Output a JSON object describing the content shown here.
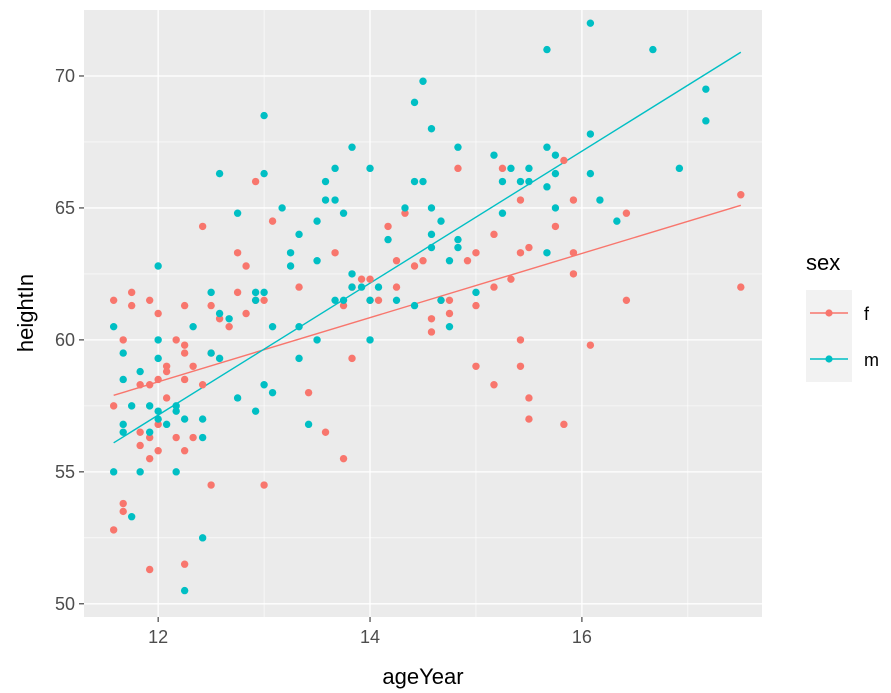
{
  "chart_data": {
    "type": "scatter",
    "title": "",
    "xlabel": "ageYear",
    "ylabel": "heightIn",
    "xlim": [
      11.3,
      17.7
    ],
    "ylim": [
      49.5,
      72.5
    ],
    "x_ticks": [
      12,
      14,
      16
    ],
    "y_ticks": [
      50,
      55,
      60,
      65,
      70
    ],
    "x_tick_labels": [
      "12",
      "14",
      "16"
    ],
    "y_tick_labels": [
      "50",
      "55",
      "60",
      "65",
      "70"
    ],
    "grid": true,
    "legend": {
      "title": "sex",
      "position": "right"
    },
    "series": [
      {
        "name": "f",
        "color": "#F8766D",
        "trend": {
          "x": [
            11.58,
            17.5
          ],
          "y": [
            57.9,
            65.1
          ]
        },
        "points": [
          [
            11.58,
            61.5
          ],
          [
            11.58,
            57.5
          ],
          [
            11.58,
            52.8
          ],
          [
            11.67,
            60.0
          ],
          [
            11.67,
            53.8
          ],
          [
            11.67,
            53.5
          ],
          [
            11.75,
            61.8
          ],
          [
            11.75,
            61.3
          ],
          [
            11.83,
            58.3
          ],
          [
            11.83,
            56.5
          ],
          [
            11.83,
            56.0
          ],
          [
            11.92,
            61.5
          ],
          [
            11.92,
            58.3
          ],
          [
            11.92,
            56.3
          ],
          [
            11.92,
            55.5
          ],
          [
            11.92,
            51.3
          ],
          [
            12.0,
            61.0
          ],
          [
            12.0,
            58.5
          ],
          [
            12.0,
            56.8
          ],
          [
            12.0,
            55.8
          ],
          [
            12.08,
            59.0
          ],
          [
            12.08,
            58.8
          ],
          [
            12.08,
            57.8
          ],
          [
            12.17,
            60.0
          ],
          [
            12.17,
            56.3
          ],
          [
            12.25,
            61.3
          ],
          [
            12.25,
            59.8
          ],
          [
            12.25,
            59.5
          ],
          [
            12.25,
            58.5
          ],
          [
            12.25,
            55.8
          ],
          [
            12.25,
            51.5
          ],
          [
            12.33,
            59.0
          ],
          [
            12.33,
            56.3
          ],
          [
            12.42,
            64.3
          ],
          [
            12.42,
            58.3
          ],
          [
            12.5,
            61.3
          ],
          [
            12.5,
            59.5
          ],
          [
            12.5,
            54.5
          ],
          [
            12.58,
            60.8
          ],
          [
            12.67,
            60.5
          ],
          [
            12.75,
            63.3
          ],
          [
            12.75,
            61.8
          ],
          [
            12.83,
            62.8
          ],
          [
            12.83,
            61.0
          ],
          [
            12.92,
            66.0
          ],
          [
            12.92,
            61.5
          ],
          [
            13.0,
            61.5
          ],
          [
            13.0,
            54.5
          ],
          [
            13.08,
            64.5
          ],
          [
            13.33,
            62.0
          ],
          [
            13.42,
            58.0
          ],
          [
            13.58,
            56.5
          ],
          [
            13.67,
            63.3
          ],
          [
            13.75,
            61.3
          ],
          [
            13.75,
            55.5
          ],
          [
            13.83,
            62.0
          ],
          [
            13.83,
            59.3
          ],
          [
            13.92,
            62.3
          ],
          [
            14.0,
            62.3
          ],
          [
            14.0,
            61.5
          ],
          [
            14.08,
            61.5
          ],
          [
            14.17,
            64.3
          ],
          [
            14.25,
            63.0
          ],
          [
            14.25,
            62.0
          ],
          [
            14.33,
            64.8
          ],
          [
            14.42,
            62.8
          ],
          [
            14.5,
            63.0
          ],
          [
            14.58,
            60.8
          ],
          [
            14.58,
            60.3
          ],
          [
            14.67,
            61.5
          ],
          [
            14.75,
            61.5
          ],
          [
            14.75,
            61.0
          ],
          [
            14.83,
            66.5
          ],
          [
            14.92,
            63.0
          ],
          [
            15.0,
            63.3
          ],
          [
            15.0,
            61.3
          ],
          [
            15.0,
            59.0
          ],
          [
            15.17,
            64.0
          ],
          [
            15.17,
            62.0
          ],
          [
            15.17,
            58.3
          ],
          [
            15.25,
            66.5
          ],
          [
            15.33,
            62.3
          ],
          [
            15.42,
            65.3
          ],
          [
            15.42,
            63.3
          ],
          [
            15.42,
            60.0
          ],
          [
            15.42,
            59.0
          ],
          [
            15.5,
            63.5
          ],
          [
            15.5,
            57.8
          ],
          [
            15.5,
            57.0
          ],
          [
            15.75,
            64.3
          ],
          [
            15.83,
            66.8
          ],
          [
            15.83,
            56.8
          ],
          [
            15.92,
            65.3
          ],
          [
            15.92,
            63.3
          ],
          [
            15.92,
            62.5
          ],
          [
            16.08,
            59.8
          ],
          [
            16.42,
            64.8
          ],
          [
            16.42,
            61.5
          ],
          [
            17.5,
            65.5
          ],
          [
            17.5,
            62.0
          ]
        ]
      },
      {
        "name": "m",
        "color": "#00BFC4",
        "trend": {
          "x": [
            11.58,
            17.5
          ],
          "y": [
            56.1,
            70.9
          ]
        },
        "points": [
          [
            11.58,
            60.5
          ],
          [
            11.58,
            55.0
          ],
          [
            11.67,
            59.5
          ],
          [
            11.67,
            58.5
          ],
          [
            11.67,
            56.8
          ],
          [
            11.67,
            56.5
          ],
          [
            11.75,
            57.5
          ],
          [
            11.75,
            53.3
          ],
          [
            11.83,
            58.8
          ],
          [
            11.83,
            55.0
          ],
          [
            11.92,
            57.5
          ],
          [
            11.92,
            56.5
          ],
          [
            12.0,
            62.8
          ],
          [
            12.0,
            60.0
          ],
          [
            12.0,
            59.3
          ],
          [
            12.0,
            57.3
          ],
          [
            12.0,
            57.0
          ],
          [
            12.08,
            56.8
          ],
          [
            12.17,
            57.5
          ],
          [
            12.17,
            57.3
          ],
          [
            12.17,
            55.0
          ],
          [
            12.25,
            57.0
          ],
          [
            12.25,
            50.5
          ],
          [
            12.33,
            60.5
          ],
          [
            12.42,
            57.0
          ],
          [
            12.42,
            56.3
          ],
          [
            12.42,
            52.5
          ],
          [
            12.5,
            61.8
          ],
          [
            12.5,
            59.5
          ],
          [
            12.58,
            66.3
          ],
          [
            12.58,
            61.0
          ],
          [
            12.58,
            59.3
          ],
          [
            12.67,
            60.8
          ],
          [
            12.75,
            64.8
          ],
          [
            12.75,
            57.8
          ],
          [
            12.92,
            61.8
          ],
          [
            12.92,
            61.5
          ],
          [
            12.92,
            57.3
          ],
          [
            13.0,
            68.5
          ],
          [
            13.0,
            66.3
          ],
          [
            13.0,
            61.8
          ],
          [
            13.0,
            58.3
          ],
          [
            13.08,
            60.5
          ],
          [
            13.08,
            58.0
          ],
          [
            13.17,
            65.0
          ],
          [
            13.25,
            63.3
          ],
          [
            13.25,
            62.8
          ],
          [
            13.33,
            64.0
          ],
          [
            13.33,
            60.5
          ],
          [
            13.33,
            59.3
          ],
          [
            13.42,
            56.8
          ],
          [
            13.5,
            64.5
          ],
          [
            13.5,
            63.0
          ],
          [
            13.5,
            60.0
          ],
          [
            13.58,
            66.0
          ],
          [
            13.58,
            65.3
          ],
          [
            13.67,
            66.5
          ],
          [
            13.67,
            65.3
          ],
          [
            13.67,
            61.5
          ],
          [
            13.75,
            64.8
          ],
          [
            13.75,
            61.5
          ],
          [
            13.83,
            67.3
          ],
          [
            13.83,
            62.5
          ],
          [
            13.83,
            62.0
          ],
          [
            13.92,
            62.0
          ],
          [
            14.0,
            66.5
          ],
          [
            14.0,
            61.5
          ],
          [
            14.0,
            60.0
          ],
          [
            14.08,
            62.0
          ],
          [
            14.17,
            63.8
          ],
          [
            14.25,
            61.5
          ],
          [
            14.33,
            65.0
          ],
          [
            14.42,
            69.0
          ],
          [
            14.42,
            66.0
          ],
          [
            14.42,
            61.3
          ],
          [
            14.5,
            69.8
          ],
          [
            14.5,
            66.0
          ],
          [
            14.58,
            68.0
          ],
          [
            14.58,
            65.0
          ],
          [
            14.58,
            64.0
          ],
          [
            14.58,
            63.5
          ],
          [
            14.67,
            64.5
          ],
          [
            14.67,
            61.5
          ],
          [
            14.75,
            63.0
          ],
          [
            14.75,
            60.5
          ],
          [
            14.83,
            67.3
          ],
          [
            14.83,
            63.8
          ],
          [
            14.83,
            63.5
          ],
          [
            15.0,
            61.8
          ],
          [
            15.17,
            67.0
          ],
          [
            15.25,
            66.0
          ],
          [
            15.25,
            64.8
          ],
          [
            15.33,
            66.5
          ],
          [
            15.42,
            66.0
          ],
          [
            15.5,
            66.5
          ],
          [
            15.5,
            66.0
          ],
          [
            15.67,
            71.0
          ],
          [
            15.67,
            67.3
          ],
          [
            15.67,
            65.8
          ],
          [
            15.67,
            63.3
          ],
          [
            15.75,
            67.0
          ],
          [
            15.75,
            66.3
          ],
          [
            15.75,
            65.0
          ],
          [
            16.08,
            72.0
          ],
          [
            16.08,
            67.8
          ],
          [
            16.08,
            66.3
          ],
          [
            16.17,
            65.3
          ],
          [
            16.33,
            64.5
          ],
          [
            16.67,
            71.0
          ],
          [
            16.92,
            66.5
          ],
          [
            17.17,
            69.5
          ],
          [
            17.17,
            68.3
          ]
        ]
      }
    ]
  }
}
